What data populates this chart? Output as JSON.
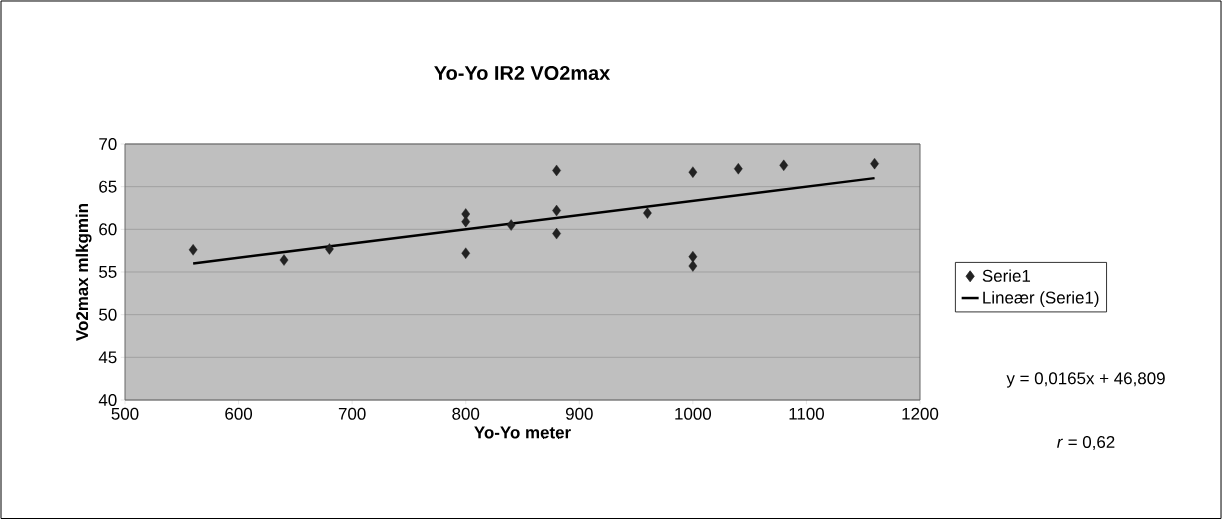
{
  "chart_data": {
    "type": "scatter",
    "title": "Yo-Yo IR2 VO2max",
    "xlabel": "Yo-Yo meter",
    "ylabel": "Vo2max mlkgmin",
    "xlim": [
      500,
      1200
    ],
    "xticks": [
      500,
      600,
      700,
      800,
      900,
      1000,
      1100,
      1200
    ],
    "ylim": [
      40,
      70
    ],
    "yticks": [
      40,
      45,
      50,
      55,
      60,
      65,
      70
    ],
    "grid": "y",
    "legend": "right",
    "marker": "diamond",
    "annotations": [
      "y = 0,0165x + 46,809",
      "*r* = 0,62"
    ],
    "series": [
      {
        "name": "Serie1",
        "color": "#222222",
        "x": [
          560,
          640,
          680,
          800,
          800,
          800,
          840,
          880,
          880,
          880,
          960,
          1000,
          1000,
          1000,
          1040,
          1080,
          1160
        ],
        "values": [
          57.6,
          56.4,
          57.7,
          61.8,
          60.9,
          57.2,
          60.5,
          66.9,
          62.2,
          59.5,
          61.9,
          66.7,
          56.8,
          55.7,
          67.1,
          67.5,
          67.7
        ]
      },
      {
        "name": "Lineær (Serie1)",
        "type": "line",
        "color": "#000000",
        "marker": "none",
        "x": [
          560,
          1160
        ],
        "values": [
          56.0,
          66.0
        ]
      }
    ]
  }
}
